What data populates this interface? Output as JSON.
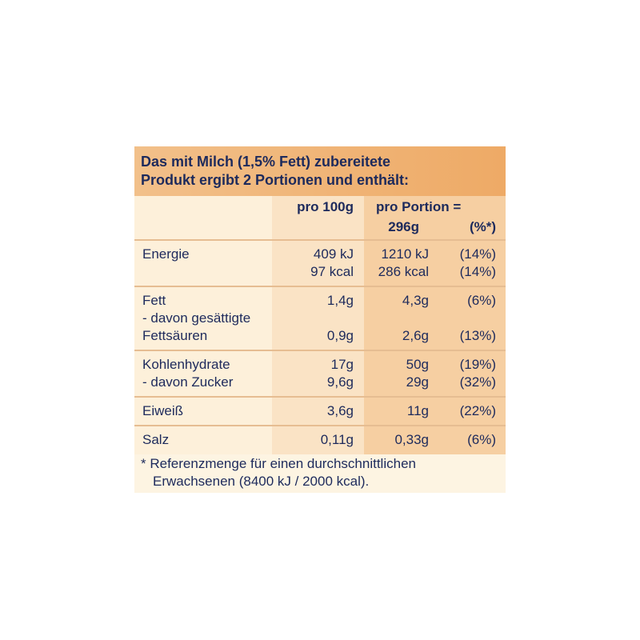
{
  "header": {
    "lines": [
      "Das mit Milch (1,5% Fett) zubereitete",
      "Produkt ergibt 2 Portionen und enthält:"
    ]
  },
  "columns": {
    "per100": "pro 100g",
    "portion": [
      "pro Portion =",
      "296g"
    ],
    "percent": "(%*)"
  },
  "rows": [
    [
      {
        "label": "Energie",
        "per100": "409 kJ",
        "portion": "1210 kJ",
        "percent": "(14%)"
      },
      {
        "label": null,
        "per100": "97 kcal",
        "portion": "286 kcal",
        "percent": "(14%)"
      }
    ],
    [
      {
        "label": "Fett",
        "per100": "1,4g",
        "portion": "4,3g",
        "percent": "(6%)"
      },
      {
        "label": "- davon gesättigte",
        "per100": null,
        "portion": null,
        "percent": null
      },
      {
        "label": "Fettsäuren",
        "per100": "0,9g",
        "portion": "2,6g",
        "percent": "(13%)"
      }
    ],
    [
      {
        "label": "Kohlenhydrate",
        "per100": "17g",
        "portion": "50g",
        "percent": "(19%)"
      },
      {
        "label": "- davon Zucker",
        "per100": "9,6g",
        "portion": "29g",
        "percent": "(32%)"
      }
    ],
    [
      {
        "label": "Eiweiß",
        "per100": "3,6g",
        "portion": "11g",
        "percent": "(22%)"
      }
    ],
    [
      {
        "label": "Salz",
        "per100": "0,11g",
        "portion": "0,33g",
        "percent": "(6%)"
      }
    ]
  ],
  "footnote": [
    "* Referenzmenge für einen durchschnittlichen",
    "Erwachsenen (8400 kJ / 2000 kcal)."
  ]
}
